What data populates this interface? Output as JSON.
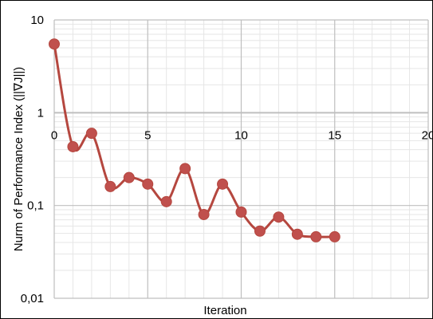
{
  "chart_data": {
    "type": "line",
    "title": "",
    "xlabel": "Iteration",
    "ylabel": "Nurm of Performance Index (||∇J||)",
    "xlim": [
      0,
      20
    ],
    "ylim": [
      0.01,
      10
    ],
    "y_scale": "log",
    "x_ticks": [
      0,
      5,
      10,
      15,
      20
    ],
    "y_ticks": [
      0.01,
      0.1,
      1,
      10
    ],
    "y_tick_labels": [
      "0,01",
      "0,1",
      "1",
      "10"
    ],
    "grid": true,
    "legend": "none",
    "series": [
      {
        "x": [
          0,
          1,
          2,
          3,
          4,
          5,
          6,
          7,
          8,
          9,
          10,
          11,
          12,
          13,
          14,
          15
        ],
        "values": [
          5.5,
          0.43,
          0.6,
          0.16,
          0.2,
          0.17,
          0.11,
          0.25,
          0.08,
          0.17,
          0.085,
          0.053,
          0.075,
          0.049,
          0.046,
          0.046
        ]
      }
    ],
    "colors": {
      "line": "#b5473f",
      "marker": "#c0504d",
      "major_grid": "#bfbfbf",
      "minor_grid": "#e6e6e6"
    }
  }
}
